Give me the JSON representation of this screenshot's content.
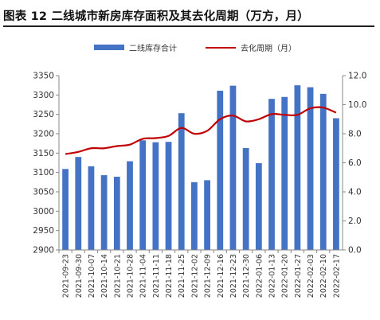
{
  "title": "图表 12 二线城市新房库存面积及其去化周期（万方，月）",
  "legend": {
    "bar_label": "二线库存合计",
    "line_label": "去化周期（月）"
  },
  "colors": {
    "bar": "#4472C4",
    "line": "#C00000",
    "axis": "#888888",
    "text": "#333333"
  },
  "chart_data": {
    "type": "bar",
    "title": "图表 12 二线城市新房库存面积及其去化周期（万方，月）",
    "xlabel": "",
    "ylabel": "",
    "categories": [
      "2021-09-23",
      "2021-09-30",
      "2021-10-07",
      "2021-10-14",
      "2021-10-21",
      "2021-10-28",
      "2021-11-04",
      "2021-11-11",
      "2021-11-18",
      "2021-11-25",
      "2021-12-02",
      "2021-12-09",
      "2021-12-16",
      "2021-12-23",
      "2021-12-30",
      "2022-01-06",
      "2022-01-13",
      "2022-01-20",
      "2022-01-27",
      "2022-02-03",
      "2022-02-10",
      "2022-02-17"
    ],
    "series": [
      {
        "name": "二线库存合计",
        "type": "bar",
        "axis": "left",
        "values": [
          3109,
          3140,
          3116,
          3093,
          3089,
          3129,
          3183,
          3178,
          3179,
          3253,
          3075,
          3080,
          3311,
          3324,
          3163,
          3124,
          3290,
          3295,
          3325,
          3320,
          3303,
          3240
        ]
      },
      {
        "name": "去化周期（月）",
        "type": "line",
        "axis": "right",
        "values": [
          6.6,
          6.75,
          7.0,
          7.0,
          7.15,
          7.25,
          7.65,
          7.7,
          7.85,
          8.4,
          8.0,
          8.2,
          9.0,
          9.25,
          8.85,
          9.0,
          9.35,
          9.3,
          9.3,
          9.75,
          9.8,
          9.45
        ]
      }
    ],
    "y_left": {
      "min": 2900,
      "max": 3350,
      "ticks": [
        "2900",
        "2950",
        "3000",
        "3050",
        "3100",
        "3150",
        "3200",
        "3250",
        "3300",
        "3350"
      ]
    },
    "y_right": {
      "min": 0,
      "max": 12,
      "ticks": [
        "0.0",
        "2.0",
        "4.0",
        "6.0",
        "8.0",
        "10.0",
        "12.0"
      ]
    },
    "grid": false,
    "legend_position": "top-center"
  }
}
